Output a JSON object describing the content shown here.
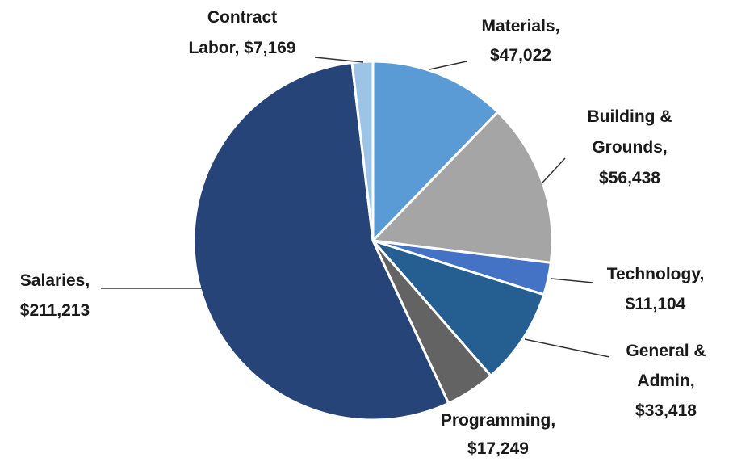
{
  "chart_data": {
    "type": "pie",
    "values": [
      47022,
      56438,
      11104,
      33418,
      17249,
      211213,
      7169
    ],
    "value_labels": [
      "Materials,\n$47,022",
      "Building &\nGrounds,\n$56,438",
      "Technology,\n$11,104",
      "General &\nAdmin,\n$33,418",
      "Programming,\n$17,249",
      "Salaries,\n$211,213",
      "Contract\nLabor, $7,169"
    ],
    "colors": [
      "#5b9bd5",
      "#a5a5a5",
      "#4472c4",
      "#255e91",
      "#636363",
      "#264478",
      "#9dc3e6"
    ]
  }
}
